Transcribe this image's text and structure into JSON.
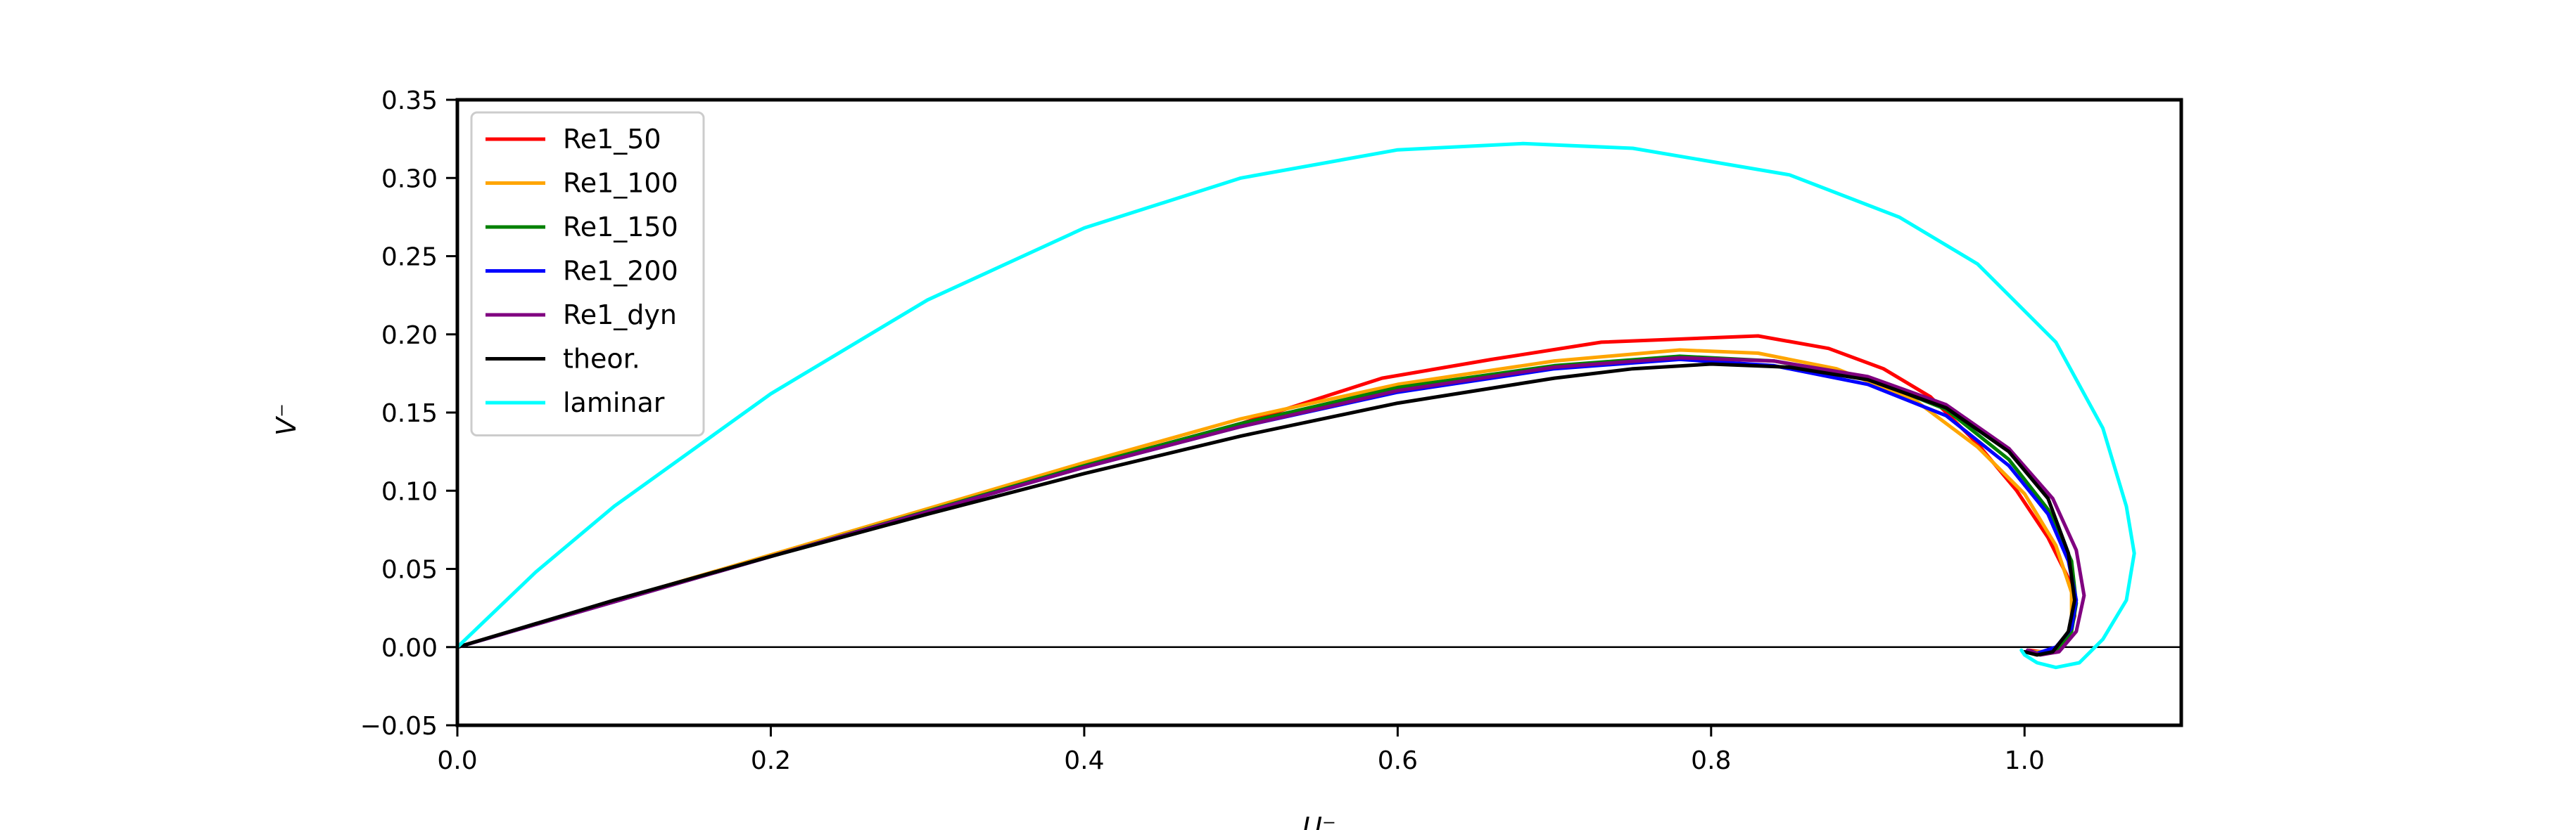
{
  "chart_data": {
    "type": "line",
    "title": "",
    "xlabel": "U⁻",
    "ylabel": "V⁻",
    "xlim": [
      0.0,
      1.1
    ],
    "ylim": [
      -0.05,
      0.35
    ],
    "x_ticks": [
      0.0,
      0.2,
      0.4,
      0.6,
      0.8,
      1.0
    ],
    "x_tick_labels": [
      "0.0",
      "0.2",
      "0.4",
      "0.6",
      "0.8",
      "1.0"
    ],
    "y_ticks": [
      -0.05,
      0.0,
      0.05,
      0.1,
      0.15,
      0.2,
      0.25,
      0.3,
      0.35
    ],
    "y_tick_labels": [
      "−0.05",
      "0.00",
      "0.05",
      "0.10",
      "0.15",
      "0.20",
      "0.25",
      "0.30",
      "0.35"
    ],
    "grid": false,
    "zero_line": true,
    "legend_position": "upper-left",
    "series": [
      {
        "name": "Re1_50",
        "color": "#ff0000",
        "points": [
          [
            0.0,
            0.0
          ],
          [
            0.2,
            0.058
          ],
          [
            0.4,
            0.116
          ],
          [
            0.5,
            0.143
          ],
          [
            0.59,
            0.172
          ],
          [
            0.66,
            0.184
          ],
          [
            0.73,
            0.195
          ],
          [
            0.83,
            0.199
          ],
          [
            0.875,
            0.191
          ],
          [
            0.91,
            0.178
          ],
          [
            0.94,
            0.16
          ],
          [
            0.97,
            0.13
          ],
          [
            0.995,
            0.1
          ],
          [
            1.015,
            0.07
          ],
          [
            1.03,
            0.04
          ],
          [
            1.032,
            0.02
          ],
          [
            1.028,
            0.005
          ],
          [
            1.02,
            -0.002
          ],
          [
            1.01,
            -0.003
          ],
          [
            1.003,
            -0.002
          ]
        ]
      },
      {
        "name": "Re1_100",
        "color": "#ffa500",
        "points": [
          [
            0.0,
            0.0
          ],
          [
            0.2,
            0.059
          ],
          [
            0.4,
            0.118
          ],
          [
            0.5,
            0.146
          ],
          [
            0.6,
            0.168
          ],
          [
            0.7,
            0.183
          ],
          [
            0.78,
            0.19
          ],
          [
            0.83,
            0.188
          ],
          [
            0.88,
            0.178
          ],
          [
            0.93,
            0.158
          ],
          [
            0.97,
            0.128
          ],
          [
            1.0,
            0.098
          ],
          [
            1.02,
            0.065
          ],
          [
            1.03,
            0.035
          ],
          [
            1.03,
            0.015
          ],
          [
            1.025,
            0.003
          ],
          [
            1.015,
            -0.003
          ],
          [
            1.005,
            -0.003
          ]
        ]
      },
      {
        "name": "Re1_150",
        "color": "#008000",
        "points": [
          [
            0.0,
            0.0
          ],
          [
            0.2,
            0.058
          ],
          [
            0.4,
            0.116
          ],
          [
            0.5,
            0.143
          ],
          [
            0.6,
            0.166
          ],
          [
            0.7,
            0.18
          ],
          [
            0.78,
            0.186
          ],
          [
            0.84,
            0.183
          ],
          [
            0.9,
            0.172
          ],
          [
            0.95,
            0.152
          ],
          [
            0.99,
            0.12
          ],
          [
            1.015,
            0.088
          ],
          [
            1.03,
            0.055
          ],
          [
            1.033,
            0.028
          ],
          [
            1.03,
            0.01
          ],
          [
            1.02,
            -0.002
          ],
          [
            1.008,
            -0.004
          ],
          [
            1.002,
            -0.002
          ]
        ]
      },
      {
        "name": "Re1_200",
        "color": "#0000ff",
        "points": [
          [
            0.0,
            0.0
          ],
          [
            0.2,
            0.058
          ],
          [
            0.4,
            0.115
          ],
          [
            0.5,
            0.141
          ],
          [
            0.6,
            0.163
          ],
          [
            0.7,
            0.178
          ],
          [
            0.78,
            0.184
          ],
          [
            0.84,
            0.18
          ],
          [
            0.9,
            0.168
          ],
          [
            0.95,
            0.148
          ],
          [
            0.99,
            0.116
          ],
          [
            1.015,
            0.085
          ],
          [
            1.028,
            0.055
          ],
          [
            1.033,
            0.03
          ],
          [
            1.03,
            0.012
          ],
          [
            1.02,
            0.0
          ],
          [
            1.008,
            -0.004
          ],
          [
            1.002,
            -0.002
          ]
        ]
      },
      {
        "name": "Re1_dyn",
        "color": "#800080",
        "points": [
          [
            0.0,
            0.0
          ],
          [
            0.2,
            0.058
          ],
          [
            0.4,
            0.115
          ],
          [
            0.5,
            0.141
          ],
          [
            0.6,
            0.164
          ],
          [
            0.7,
            0.179
          ],
          [
            0.78,
            0.185
          ],
          [
            0.84,
            0.183
          ],
          [
            0.9,
            0.173
          ],
          [
            0.95,
            0.155
          ],
          [
            0.99,
            0.127
          ],
          [
            1.018,
            0.095
          ],
          [
            1.033,
            0.062
          ],
          [
            1.038,
            0.033
          ],
          [
            1.033,
            0.01
          ],
          [
            1.022,
            -0.003
          ],
          [
            1.01,
            -0.005
          ],
          [
            1.002,
            -0.002
          ]
        ]
      },
      {
        "name": "theor.",
        "color": "#000000",
        "points": [
          [
            0.0,
            0.0
          ],
          [
            0.1,
            0.03
          ],
          [
            0.2,
            0.058
          ],
          [
            0.3,
            0.085
          ],
          [
            0.4,
            0.111
          ],
          [
            0.5,
            0.135
          ],
          [
            0.6,
            0.156
          ],
          [
            0.7,
            0.172
          ],
          [
            0.75,
            0.178
          ],
          [
            0.8,
            0.181
          ],
          [
            0.85,
            0.179
          ],
          [
            0.9,
            0.171
          ],
          [
            0.95,
            0.153
          ],
          [
            0.99,
            0.125
          ],
          [
            1.015,
            0.095
          ],
          [
            1.028,
            0.06
          ],
          [
            1.032,
            0.03
          ],
          [
            1.028,
            0.01
          ],
          [
            1.018,
            -0.003
          ],
          [
            1.008,
            -0.005
          ],
          [
            1.0,
            -0.003
          ]
        ]
      },
      {
        "name": "laminar",
        "color": "#00ffff",
        "points": [
          [
            0.0,
            0.0
          ],
          [
            0.05,
            0.048
          ],
          [
            0.1,
            0.09
          ],
          [
            0.2,
            0.162
          ],
          [
            0.3,
            0.222
          ],
          [
            0.4,
            0.268
          ],
          [
            0.5,
            0.3
          ],
          [
            0.6,
            0.318
          ],
          [
            0.68,
            0.322
          ],
          [
            0.75,
            0.319
          ],
          [
            0.85,
            0.302
          ],
          [
            0.92,
            0.275
          ],
          [
            0.97,
            0.245
          ],
          [
            1.02,
            0.195
          ],
          [
            1.05,
            0.14
          ],
          [
            1.065,
            0.09
          ],
          [
            1.07,
            0.06
          ],
          [
            1.065,
            0.03
          ],
          [
            1.05,
            0.005
          ],
          [
            1.035,
            -0.01
          ],
          [
            1.02,
            -0.013
          ],
          [
            1.008,
            -0.01
          ],
          [
            1.0,
            -0.005
          ],
          [
            0.998,
            -0.002
          ]
        ]
      }
    ]
  }
}
